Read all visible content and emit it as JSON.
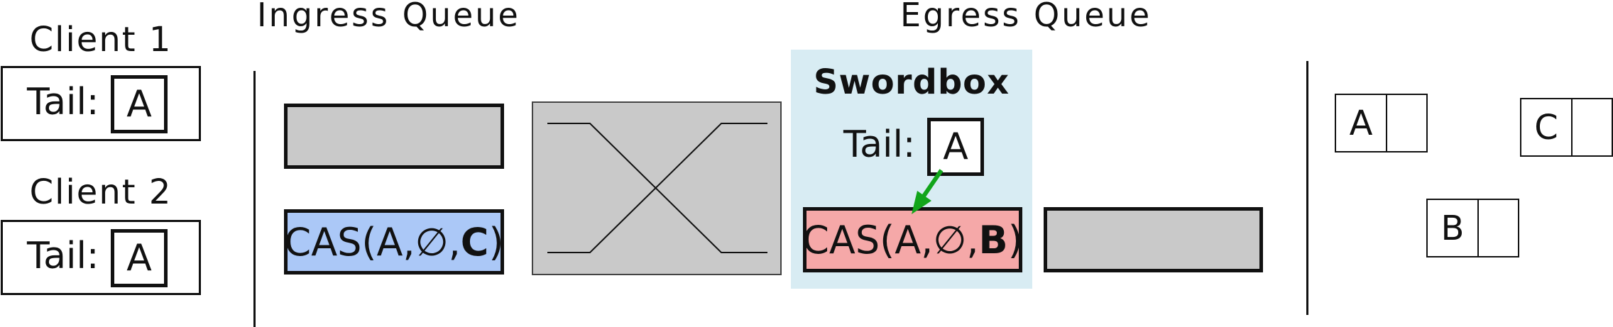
{
  "headers": {
    "ingress": "Ingress Queue",
    "egress": "Egress Queue"
  },
  "clients": [
    {
      "label": "Client 1",
      "tail_label": "Tail:",
      "tail_value": "A"
    },
    {
      "label": "Client 2",
      "tail_label": "Tail:",
      "tail_value": "A"
    }
  ],
  "ingress_packets": [
    {
      "text": ""
    },
    {
      "prefix": "CAS(A,∅,",
      "value": "C",
      "suffix": ")",
      "color": "#abc8f7"
    }
  ],
  "swordbox": {
    "title": "Swordbox",
    "tail_label": "Tail:",
    "tail_value": "A",
    "background": "#d8ecf3",
    "arrow_color": "#12a51a",
    "packet": {
      "prefix": "CAS(A,∅,",
      "value": "B",
      "suffix": ")",
      "color": "#f5a8a8"
    }
  },
  "egress_packets": [
    {
      "text": ""
    }
  ],
  "memory": [
    {
      "key": "A"
    },
    {
      "key": "C"
    },
    {
      "key": "B"
    }
  ]
}
